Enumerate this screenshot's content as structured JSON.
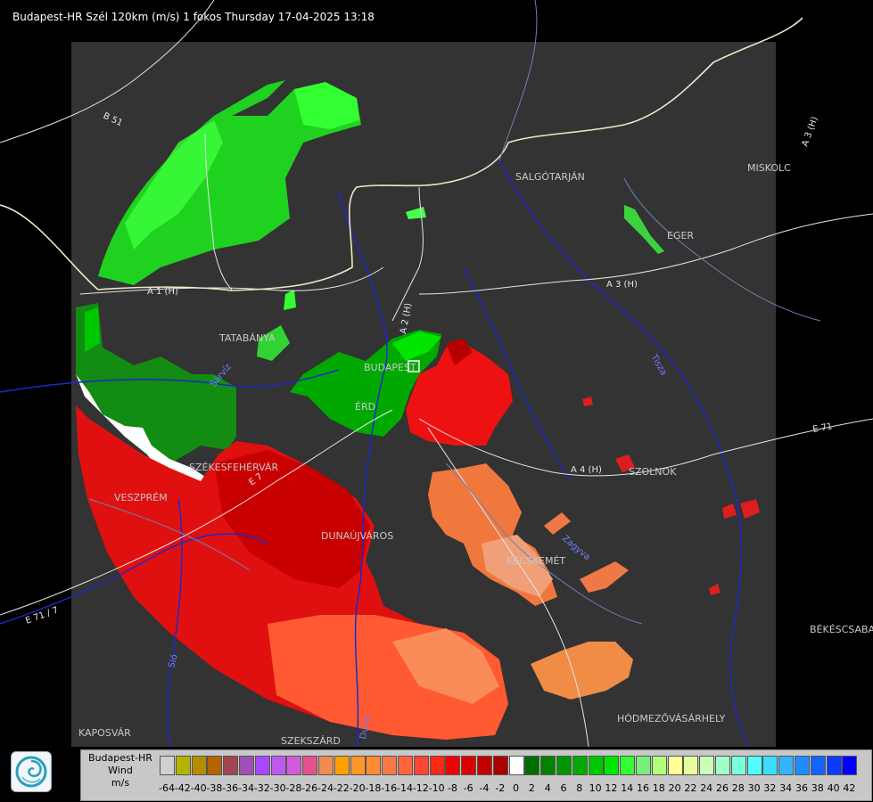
{
  "header": {
    "title": "Budapest-HR Szél 120km (m/s) 1 fokos Thursday 17-04-2025 13:18"
  },
  "cities": {
    "salgotarjan": "SALGÓTARJÁN",
    "miskolc": "MISKOLC",
    "eger": "EGER",
    "tatabanya": "TATABÁNYA",
    "budapest": "BUDAPEST",
    "erd": "ÉRD",
    "szekesfehervar": "SZÉKESFEHÉRVÁR",
    "veszprem": "VESZPRÉM",
    "dunaujvaros": "DUNAÚJVÁROS",
    "kecskemet": "KECSKEMÉT",
    "szolnok": "SZOLNOK",
    "bekescsaba": "BÉKÉSCSABA",
    "hodmezovasarhely": "HÓDMEZŐVÁSÁRHELY",
    "kaposvar": "KAPOSVÁR",
    "szekszard": "SZEKSZÁRD"
  },
  "roads": {
    "b51": "B 51",
    "a1": "A 1 (H)",
    "a2": "A 2 (H)",
    "a3": "A 3 (H)",
    "a3b": "A 3 (H)",
    "a4": "A 4 (H)",
    "e71": "E 71",
    "e71b": "E 71 / 7",
    "m7": "E 7"
  },
  "rivers": {
    "duna": "Duna",
    "tisza": "Tisza",
    "sio": "Sió",
    "zagyva": "Zagyva",
    "sarviz": "Sárvíz"
  },
  "legend": {
    "station": "Budapest-HR",
    "quantity": "Wind",
    "unit": "m/s",
    "scale": [
      {
        "label": "-64",
        "color": "#d0d0d0"
      },
      {
        "label": "-42",
        "color": "#b4b400"
      },
      {
        "label": "-40",
        "color": "#b48c00"
      },
      {
        "label": "-38",
        "color": "#b46400"
      },
      {
        "label": "-36",
        "color": "#a04650"
      },
      {
        "label": "-34",
        "color": "#a050b4"
      },
      {
        "label": "-32",
        "color": "#aa46ff"
      },
      {
        "label": "-30",
        "color": "#be5aeb"
      },
      {
        "label": "-28",
        "color": "#d25adc"
      },
      {
        "label": "-26",
        "color": "#e6508c"
      },
      {
        "label": "-24",
        "color": "#f08c50"
      },
      {
        "label": "-22",
        "color": "#ffa000"
      },
      {
        "label": "-20",
        "color": "#ff9628"
      },
      {
        "label": "-18",
        "color": "#ff8c32"
      },
      {
        "label": "-16",
        "color": "#fa7846"
      },
      {
        "label": "-14",
        "color": "#ff643c"
      },
      {
        "label": "-12",
        "color": "#ff4632"
      },
      {
        "label": "-10",
        "color": "#ff2814"
      },
      {
        "label": "-8",
        "color": "#f00000"
      },
      {
        "label": "-6",
        "color": "#dc0000"
      },
      {
        "label": "-4",
        "color": "#c30000"
      },
      {
        "label": "-2",
        "color": "#aa0000"
      },
      {
        "label": "0",
        "color": "#ffffff"
      },
      {
        "label": "2",
        "color": "#006e00"
      },
      {
        "label": "4",
        "color": "#008200"
      },
      {
        "label": "6",
        "color": "#009600"
      },
      {
        "label": "8",
        "color": "#00aa00"
      },
      {
        "label": "10",
        "color": "#00c800"
      },
      {
        "label": "12",
        "color": "#00e600"
      },
      {
        "label": "14",
        "color": "#32ff32"
      },
      {
        "label": "16",
        "color": "#78f078"
      },
      {
        "label": "18",
        "color": "#b4ff78"
      },
      {
        "label": "20",
        "color": "#ffff96"
      },
      {
        "label": "22",
        "color": "#e6ffa0"
      },
      {
        "label": "24",
        "color": "#c8ffb4"
      },
      {
        "label": "26",
        "color": "#a0ffc8"
      },
      {
        "label": "28",
        "color": "#78ffdc"
      },
      {
        "label": "30",
        "color": "#50ffff"
      },
      {
        "label": "32",
        "color": "#3cdcff"
      },
      {
        "label": "34",
        "color": "#32b4ff"
      },
      {
        "label": "36",
        "color": "#1e8cff"
      },
      {
        "label": "38",
        "color": "#1464ff"
      },
      {
        "label": "40",
        "color": "#0a3cff"
      },
      {
        "label": "42",
        "color": "#0000ff"
      }
    ]
  }
}
